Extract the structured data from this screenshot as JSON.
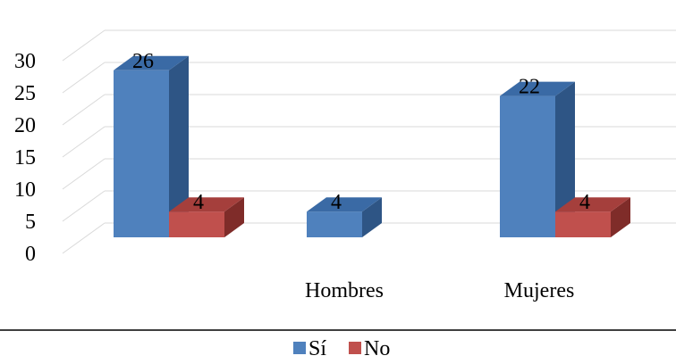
{
  "chart_data": {
    "type": "bar",
    "style": "3d-clustered-column",
    "categories": [
      "",
      "Hombres",
      "Mujeres"
    ],
    "series": [
      {
        "name": "Sí",
        "values": [
          26,
          4,
          22
        ],
        "color": "#4f81bd",
        "top_color": "#3a6aa5",
        "side_color": "#2e5585"
      },
      {
        "name": "No",
        "values": [
          4,
          null,
          4
        ],
        "color": "#c0504d",
        "top_color": "#a53f3c",
        "side_color": "#7f2c29"
      }
    ],
    "data_labels": [
      [
        "26",
        "4",
        "22"
      ],
      [
        "4",
        "",
        "4"
      ]
    ],
    "y_ticks": [
      "0",
      "5",
      "10",
      "15",
      "20",
      "25",
      "30"
    ],
    "ylim": [
      0,
      30
    ],
    "grid": true,
    "legend_position": "bottom"
  }
}
